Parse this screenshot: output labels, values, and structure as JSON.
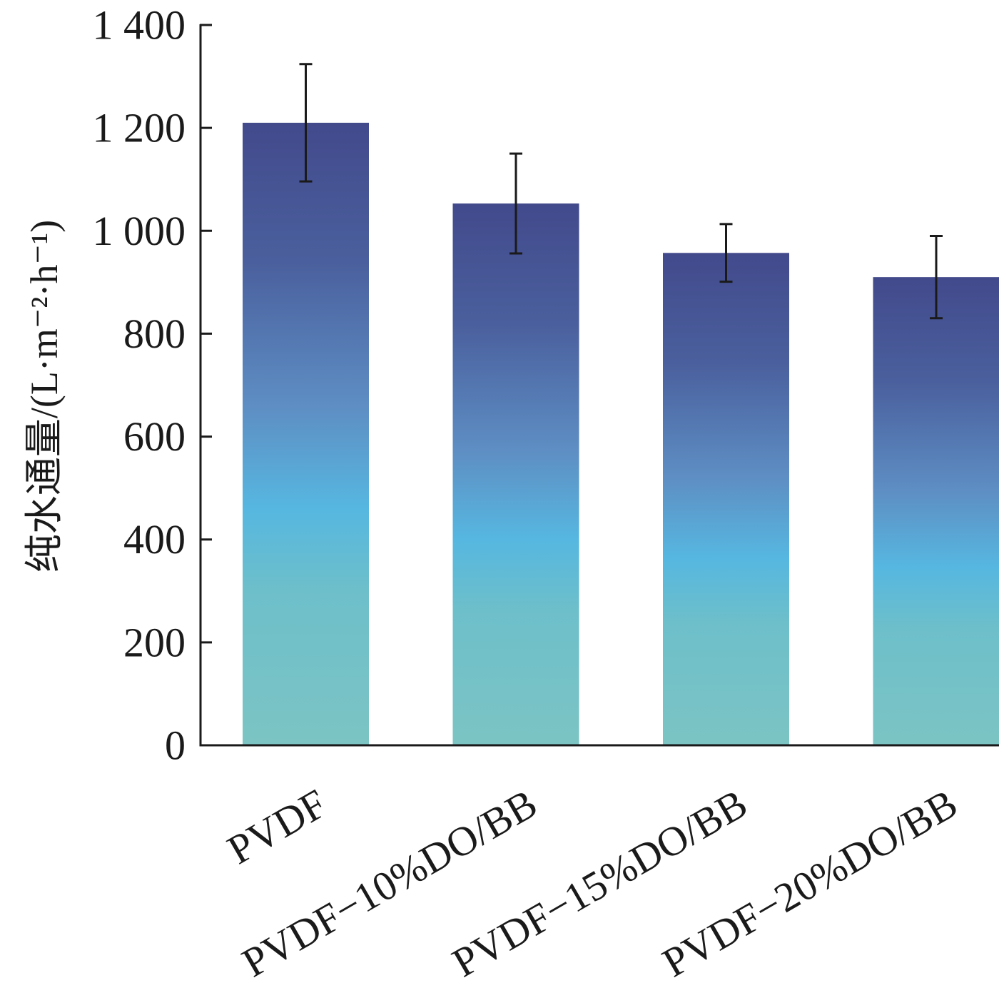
{
  "chart_data": {
    "type": "bar",
    "title": "",
    "xlabel": "",
    "ylabel": "纯水通量/(L·m⁻²·h⁻¹)",
    "categories": [
      "PVDF",
      "PVDF−10%DO/BB",
      "PVDF−15%DO/BB",
      "PVDF−20%DO/BB"
    ],
    "values": [
      1210,
      1053,
      957,
      910
    ],
    "errors": [
      114,
      97,
      56,
      80
    ],
    "ylim": [
      0,
      1400
    ],
    "yticks": [
      0,
      200,
      400,
      600,
      800,
      1000,
      1200,
      1400
    ],
    "ytick_labels": [
      "0",
      "200",
      "400",
      "600",
      "800",
      "1 000",
      "1 200",
      "1 400"
    ],
    "grid": false,
    "legend": "none",
    "bar_gradient": [
      "#424a8c",
      "#4a5f9d",
      "#5e8fc4",
      "#56b7e0",
      "#6dbfca",
      "#7cc4c4"
    ],
    "axis_color": "#1a1a1a"
  }
}
